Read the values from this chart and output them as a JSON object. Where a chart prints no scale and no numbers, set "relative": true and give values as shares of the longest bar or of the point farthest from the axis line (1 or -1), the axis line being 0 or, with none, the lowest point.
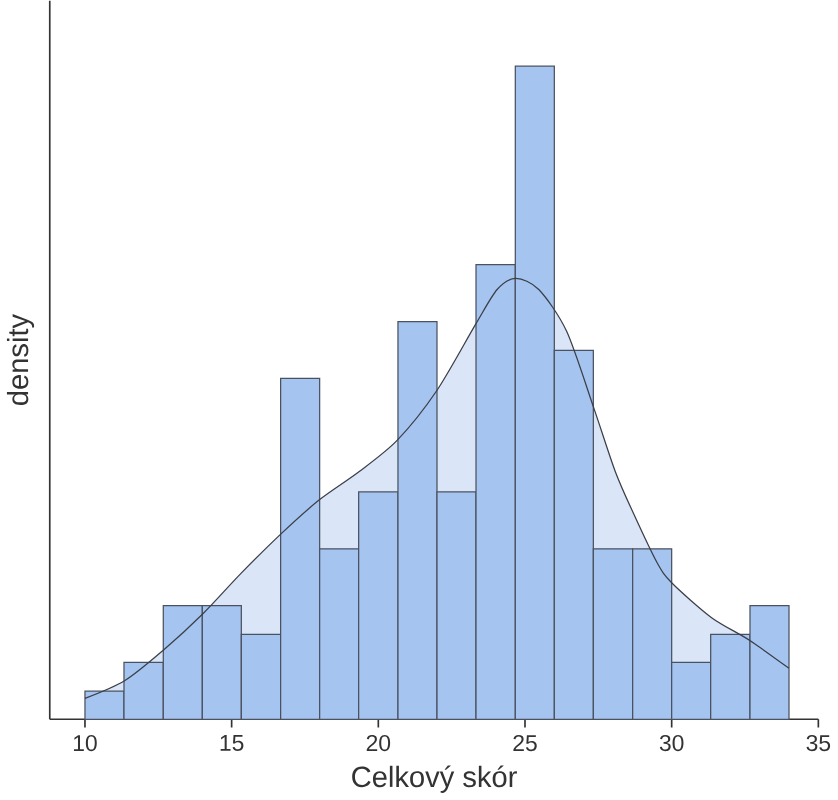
{
  "chart_data": {
    "type": "histogram",
    "relative": true,
    "xlabel": "Celkový skór",
    "ylabel": "density",
    "xlim": [
      8.8,
      35
    ],
    "xticks": [
      10,
      15,
      20,
      25,
      30,
      35
    ],
    "bins": [
      10,
      11.33,
      12.67,
      14,
      15.33,
      16.67,
      18,
      19.33,
      20.67,
      22,
      23.33,
      24.67,
      26,
      27.33,
      28.67,
      30,
      31.33,
      32.67,
      34
    ],
    "series": [
      {
        "color": "#a6c4f0",
        "values": [
          0.043,
          0.087,
          0.174,
          0.174,
          0.13,
          0.522,
          0.261,
          0.348,
          0.609,
          0.348,
          0.696,
          1,
          0.565,
          0.261,
          0.261,
          0.087,
          0.13,
          0.174
        ]
      },
      {
        "type": "area",
        "color": "#dae6f7",
        "x": [
          10,
          11.35,
          12.65,
          14.03,
          15.31,
          16.71,
          17.99,
          19.34,
          20.64,
          21.99,
          23.32,
          24.05,
          24.69,
          25.47,
          26.42,
          27.35,
          28.08,
          28.7,
          29.5,
          30.0,
          31.35,
          32.65,
          34.0
        ],
        "values": [
          0.032,
          0.059,
          0.105,
          0.162,
          0.223,
          0.285,
          0.336,
          0.379,
          0.427,
          0.503,
          0.605,
          0.658,
          0.675,
          0.658,
          0.594,
          0.476,
          0.379,
          0.315,
          0.24,
          0.209,
          0.156,
          0.121,
          0.078
        ]
      }
    ]
  }
}
